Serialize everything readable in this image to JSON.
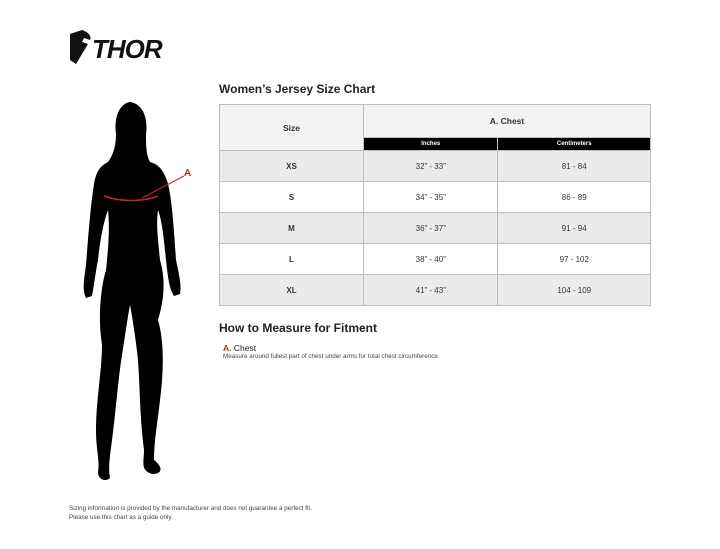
{
  "brand": {
    "logo_text": "THOR"
  },
  "title": "Women’s Jersey Size Chart",
  "table": {
    "size_header": "Size",
    "group_header": "A. Chest",
    "sub_headers": [
      "Inches",
      "Centimeters"
    ],
    "rows": [
      {
        "size": "XS",
        "inches": "32” - 33”",
        "cm": "81 - 84"
      },
      {
        "size": "S",
        "inches": "34” - 35”",
        "cm": "86 - 89"
      },
      {
        "size": "M",
        "inches": "36” - 37”",
        "cm": "91 - 94"
      },
      {
        "size": "L",
        "inches": "38” - 40”",
        "cm": "97 - 102"
      },
      {
        "size": "XL",
        "inches": "41” - 43”",
        "cm": "104 - 109"
      }
    ]
  },
  "figure": {
    "marker": "A",
    "accent": "#c0282d"
  },
  "measure": {
    "heading": "How to Measure for Fitment",
    "item_letter": "A.",
    "item_label": "Chest",
    "item_desc": "Measure around fullest part of chest under arms for total chest circumference."
  },
  "disclaimer": [
    "Sizing information is provided by the manufacturer and does not guarantee a perfect fit.",
    "Please use this chart as a guide only."
  ]
}
